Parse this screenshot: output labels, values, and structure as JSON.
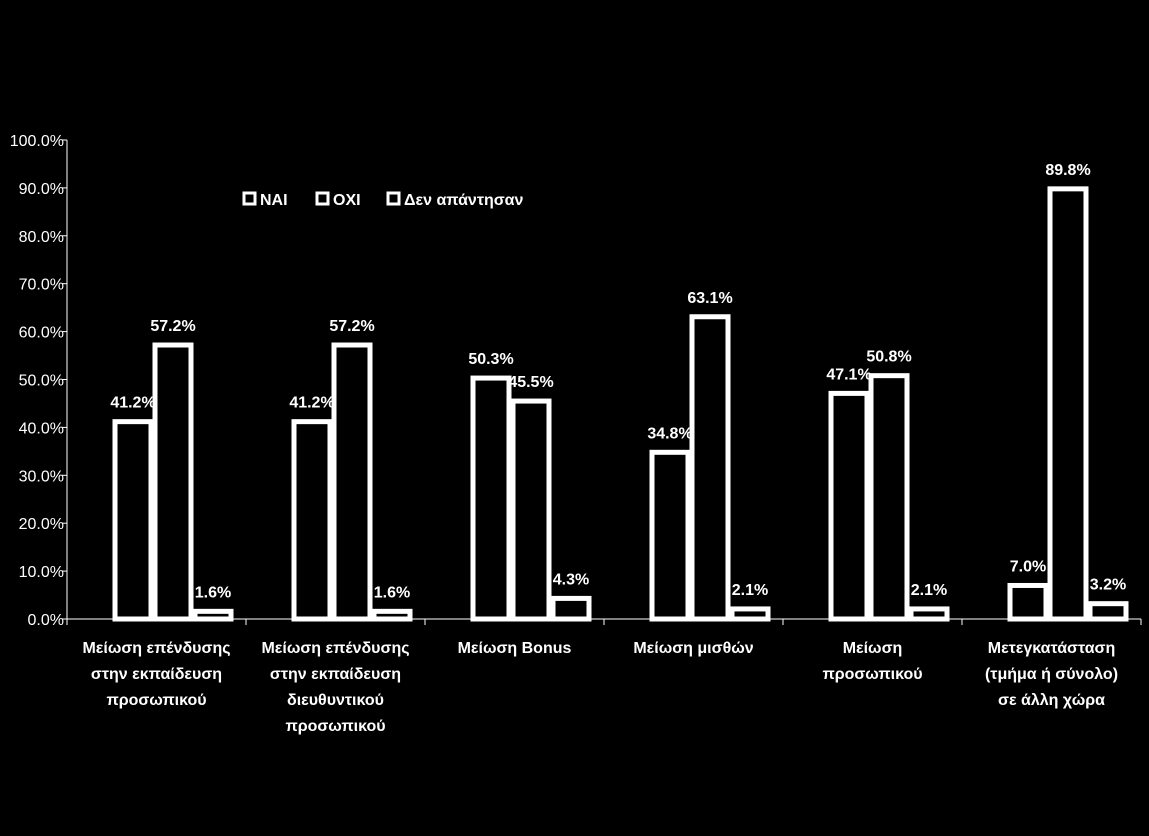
{
  "chart_data": {
    "type": "bar",
    "title": "",
    "xlabel": "",
    "ylabel": "",
    "ylim": [
      0,
      100
    ],
    "yticks": [
      "0.0%",
      "10.0%",
      "20.0%",
      "30.0%",
      "40.0%",
      "50.0%",
      "60.0%",
      "70.0%",
      "80.0%",
      "90.0%",
      "100.0%"
    ],
    "categories": [
      [
        "Μείωση επένδυσης",
        "στην εκπαίδευση",
        "προσωπικού"
      ],
      [
        "Μείωση επένδυσης",
        "στην εκπαίδευση",
        "διευθυντικού",
        "προσωπικού"
      ],
      [
        "Μείωση Bonus"
      ],
      [
        "Μείωση μισθών"
      ],
      [
        "Μείωση",
        "προσωπικού"
      ],
      [
        "Μετεγκατάσταση",
        "(τμήμα ή σύνολο)",
        "σε άλλη χώρα"
      ]
    ],
    "series": [
      {
        "name": "ΝΑΙ",
        "values": [
          41.2,
          41.2,
          50.3,
          34.8,
          47.1,
          7.0
        ],
        "labels": [
          "41.2%",
          "41.2%",
          "50.3%",
          "34.8%",
          "47.1%",
          "7.0%"
        ]
      },
      {
        "name": "ΟΧΙ",
        "values": [
          57.2,
          57.2,
          45.5,
          63.1,
          50.8,
          89.8
        ],
        "labels": [
          "57.2%",
          "57.2%",
          "45.5%",
          "63.1%",
          "50.8%",
          "89.8%"
        ]
      },
      {
        "name": "Δεν απάντησαν",
        "values": [
          1.6,
          1.6,
          4.3,
          2.1,
          2.1,
          3.2
        ],
        "labels": [
          "1.6%",
          "1.6%",
          "4.3%",
          "2.1%",
          "2.1%",
          "3.2%"
        ]
      }
    ],
    "legend_position": "top-left",
    "grid": false,
    "colors": {
      "background": "#000000",
      "bar_fill": "#000000",
      "bar_stroke": "#ffffff",
      "text": "#ffffff"
    }
  }
}
